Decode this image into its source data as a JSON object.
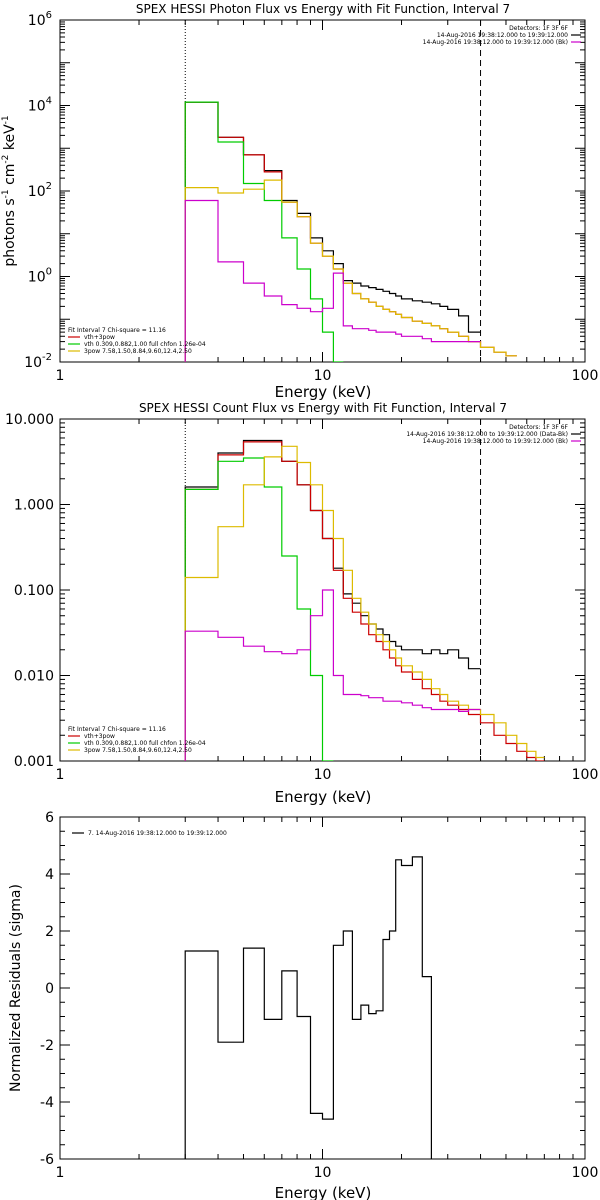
{
  "chart_data": [
    {
      "type": "line",
      "title": "SPEX HESSI Photon Flux vs Energy with Fit Function, Interval 7",
      "xlabel": "Energy (keV)",
      "ylabel": "photons s",
      "ylabel_exp1": "-1",
      "ylabel_mid": " cm",
      "ylabel_exp2": "-2",
      "ylabel_end": " keV",
      "ylabel_exp3": "-1",
      "xscale": "log",
      "yscale": "log",
      "xlim": [
        1,
        100
      ],
      "ylim": [
        0.01,
        1000000
      ],
      "xticks": [
        {
          "v": 1,
          "label": "1"
        },
        {
          "v": 10,
          "label": "10"
        },
        {
          "v": 100,
          "label": "100"
        }
      ],
      "yticks": [
        {
          "v": 0.01,
          "base": "10",
          "exp": "-2"
        },
        {
          "v": 1,
          "base": "10",
          "exp": "0"
        },
        {
          "v": 100,
          "base": "10",
          "exp": "2"
        },
        {
          "v": 10000,
          "base": "10",
          "exp": "4"
        },
        {
          "v": 1000000,
          "base": "10",
          "exp": "6"
        }
      ],
      "vlines": [
        {
          "x": 3,
          "style": "dotted"
        },
        {
          "x": 40,
          "style": "dashed"
        }
      ],
      "legend_top_right": [
        {
          "label": "Detectors: 1F 3F 6F",
          "color": ""
        },
        {
          "label": "14-Aug-2016 19:38:12.000 to 19:39:12.000",
          "color": "#000000"
        },
        {
          "label": "14-Aug-2016 19:38:12.000 to 19:39:12.000 (Bk)",
          "color": "#cc00cc"
        }
      ],
      "legend_bottom_left": [
        {
          "label": "Fit Interval 7   Chi-square = 11.16",
          "color": ""
        },
        {
          "label": "vth+3pow",
          "color": "#cc0000"
        },
        {
          "label": "vth 0.309,0.882,1.00  full chfon 1.26e-04",
          "color": "#00cc00"
        },
        {
          "label": "3pow 7.58,1.50,8.84,9.60,12.4,2.50",
          "color": "#ddbb00"
        }
      ],
      "edges": [
        3,
        4,
        5,
        6,
        7,
        8,
        9,
        10,
        11,
        12,
        13,
        14,
        15,
        16,
        17,
        18,
        19,
        20,
        22,
        24,
        26,
        28,
        30,
        33,
        36,
        40,
        45,
        50,
        55
      ],
      "series": [
        {
          "color": "#000000",
          "values": [
            12000,
            1800,
            700,
            300,
            60,
            30,
            8,
            4,
            2,
            0.8,
            0.7,
            0.6,
            0.55,
            0.5,
            0.45,
            0.4,
            0.35,
            0.3,
            0.27,
            0.25,
            0.23,
            0.2,
            0.17,
            0.12,
            0.05
          ]
        },
        {
          "color": "#cc0000",
          "values": [
            12000,
            1800,
            700,
            280,
            55,
            25,
            6,
            3,
            1.5,
            0.7,
            0.4,
            0.3,
            0.25,
            0.2,
            0.17,
            0.15,
            0.13,
            0.11,
            0.09,
            0.08,
            0.07,
            0.06,
            0.05,
            0.04,
            0.03,
            0.022,
            0.017,
            0.014
          ]
        },
        {
          "color": "#00cc00",
          "values": [
            12000,
            1400,
            150,
            60,
            8,
            1.5,
            0.3,
            0.05,
            0.01
          ]
        },
        {
          "color": "#ddbb00",
          "values": [
            120,
            90,
            110,
            180,
            55,
            25,
            6,
            3,
            1.5,
            0.7,
            0.4,
            0.3,
            0.25,
            0.2,
            0.17,
            0.15,
            0.13,
            0.11,
            0.09,
            0.08,
            0.07,
            0.06,
            0.05,
            0.04,
            0.03,
            0.022,
            0.017,
            0.014
          ]
        },
        {
          "color": "#cc00cc",
          "values": [
            60,
            2.2,
            0.7,
            0.35,
            0.22,
            0.18,
            0.15,
            0.18,
            1.2,
            0.07,
            0.06,
            0.06,
            0.055,
            0.05,
            0.05,
            0.05,
            0.045,
            0.04,
            0.04,
            0.035,
            0.03,
            0.03,
            0.03,
            0.03,
            0.03
          ]
        }
      ]
    },
    {
      "type": "line",
      "title": "SPEX HESSI Count Flux vs Energy with Fit Function, Interval 7",
      "xlabel": "Energy (keV)",
      "xscale": "log",
      "yscale": "log",
      "xlim": [
        1,
        100
      ],
      "ylim": [
        0.001,
        10
      ],
      "xticks": [
        {
          "v": 1,
          "label": "1"
        },
        {
          "v": 10,
          "label": "10"
        },
        {
          "v": 100,
          "label": "100"
        }
      ],
      "yticks": [
        {
          "v": 0.001,
          "label": "0.001"
        },
        {
          "v": 0.01,
          "label": "0.010"
        },
        {
          "v": 0.1,
          "label": "0.100"
        },
        {
          "v": 1,
          "label": "1.000"
        },
        {
          "v": 10,
          "label": "10.000"
        }
      ],
      "vlines": [
        {
          "x": 3,
          "style": "dotted"
        },
        {
          "x": 40,
          "style": "dashed"
        }
      ],
      "legend_top_right": [
        {
          "label": "Detectors: 1F 3F 6F",
          "color": ""
        },
        {
          "label": "14-Aug-2016 19:38:12.000 to 19:39:12.000 (Data-Bk)",
          "color": "#000000"
        },
        {
          "label": "14-Aug-2016 19:38:12.000 to 19:39:12.000 (Bk)",
          "color": "#cc00cc"
        }
      ],
      "legend_bottom_left": [
        {
          "label": "Fit Interval 7   Chi-square = 11.16",
          "color": ""
        },
        {
          "label": "vth+3pow",
          "color": "#cc0000"
        },
        {
          "label": "vth 0.309,0.882,1.00  full chfon 1.26e-04",
          "color": "#00cc00"
        },
        {
          "label": "3pow 7.58,1.50,8.84,9.60,12.4,2.50",
          "color": "#ddbb00"
        }
      ],
      "edges": [
        3,
        4,
        5,
        6,
        7,
        8,
        9,
        10,
        11,
        12,
        13,
        14,
        15,
        16,
        17,
        18,
        19,
        20,
        22,
        24,
        26,
        28,
        30,
        33,
        36,
        40,
        45,
        50,
        55,
        60,
        65,
        70
      ],
      "series": [
        {
          "color": "#000000",
          "values": [
            1.6,
            4.0,
            5.6,
            5.6,
            3.2,
            1.7,
            0.85,
            0.4,
            0.18,
            0.09,
            0.07,
            0.05,
            0.04,
            0.035,
            0.03,
            0.025,
            0.022,
            0.02,
            0.02,
            0.018,
            0.02,
            0.018,
            0.02,
            0.016,
            0.012
          ]
        },
        {
          "color": "#cc0000",
          "values": [
            1.5,
            3.8,
            5.4,
            5.4,
            3.2,
            1.7,
            0.85,
            0.4,
            0.17,
            0.08,
            0.055,
            0.04,
            0.03,
            0.025,
            0.02,
            0.016,
            0.013,
            0.011,
            0.009,
            0.007,
            0.006,
            0.005,
            0.0045,
            0.004,
            0.0035,
            0.0028,
            0.002,
            0.0016,
            0.0013,
            0.0011,
            0.001
          ]
        },
        {
          "color": "#00cc00",
          "values": [
            1.5,
            3.2,
            3.5,
            1.6,
            0.25,
            0.06,
            0.01,
            0.001
          ]
        },
        {
          "color": "#ddbb00",
          "values": [
            0.14,
            0.55,
            1.7,
            3.6,
            4.8,
            3.1,
            1.7,
            0.85,
            0.4,
            0.17,
            0.08,
            0.055,
            0.04,
            0.03,
            0.025,
            0.02,
            0.016,
            0.013,
            0.011,
            0.009,
            0.007,
            0.006,
            0.005,
            0.0045,
            0.004,
            0.0035,
            0.0028,
            0.002,
            0.0016,
            0.0013,
            0.0011
          ]
        },
        {
          "color": "#cc00cc",
          "values": [
            0.033,
            0.028,
            0.022,
            0.019,
            0.018,
            0.02,
            0.05,
            0.1,
            0.01,
            0.006,
            0.006,
            0.0058,
            0.0055,
            0.0055,
            0.005,
            0.005,
            0.005,
            0.0048,
            0.0045,
            0.0042,
            0.004,
            0.004,
            0.004,
            0.0038,
            0.004
          ]
        }
      ]
    },
    {
      "type": "line",
      "title": "",
      "xlabel": "Energy (keV)",
      "ylabel": "Normalized Residuals (sigma)",
      "xscale": "log",
      "yscale": "linear",
      "xlim": [
        1,
        100
      ],
      "ylim": [
        -6,
        6
      ],
      "xticks": [
        {
          "v": 1,
          "label": "1"
        },
        {
          "v": 10,
          "label": "10"
        },
        {
          "v": 100,
          "label": "100"
        }
      ],
      "yticks": [
        {
          "v": -6,
          "label": "-6"
        },
        {
          "v": -4,
          "label": "-4"
        },
        {
          "v": -2,
          "label": "-2"
        },
        {
          "v": 0,
          "label": "0"
        },
        {
          "v": 2,
          "label": "2"
        },
        {
          "v": 4,
          "label": "4"
        },
        {
          "v": 6,
          "label": "6"
        }
      ],
      "legend_top_left": [
        {
          "label": "7. 14-Aug-2016 19:38:12.000 to 19:39:12.000",
          "color": "#000000"
        }
      ],
      "edges": [
        3,
        4,
        5,
        6,
        7,
        8,
        9,
        10,
        11,
        12,
        13,
        14,
        15,
        16,
        17,
        18,
        19,
        20,
        22,
        24,
        26,
        28,
        30,
        33,
        36,
        40
      ],
      "series": [
        {
          "color": "#000000",
          "values": [
            1.3,
            -1.9,
            1.4,
            -1.1,
            0.6,
            -1.0,
            -4.4,
            -4.6,
            1.5,
            2.0,
            -1.1,
            -0.6,
            -0.9,
            -0.8,
            1.7,
            2.0,
            4.5,
            4.3,
            4.6,
            0.4
          ]
        }
      ]
    }
  ]
}
